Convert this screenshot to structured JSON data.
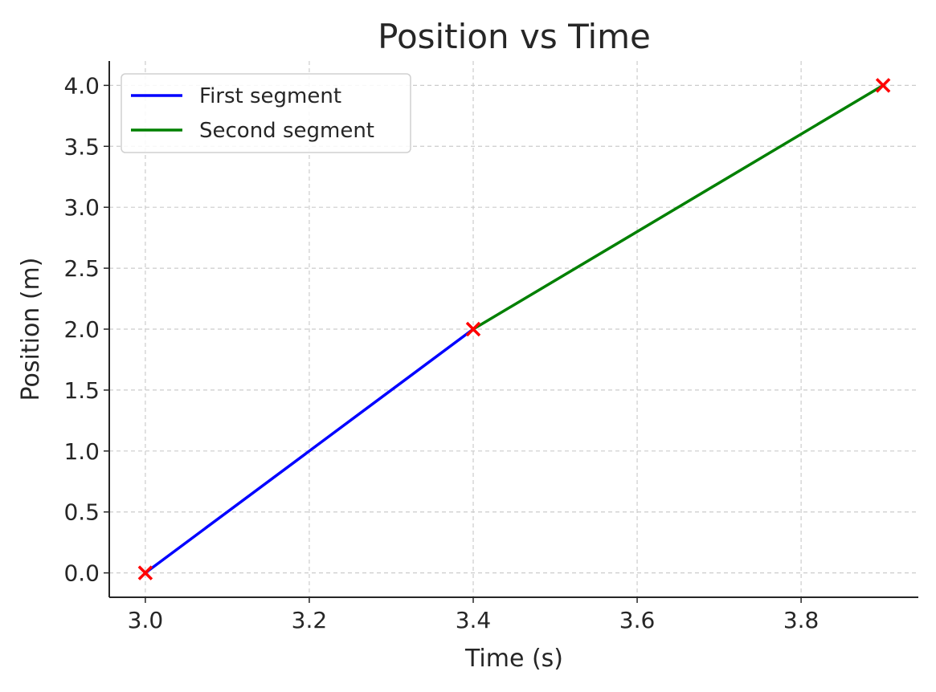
{
  "chart_data": {
    "type": "line",
    "title": "Position vs Time",
    "xlabel": "Time (s)",
    "ylabel": "Position (m)",
    "xlim": [
      2.956,
      3.943
    ],
    "ylim": [
      -0.2,
      4.2
    ],
    "xticks": [
      "3.0",
      "3.2",
      "3.4",
      "3.6",
      "3.8"
    ],
    "xtick_values": [
      3.0,
      3.2,
      3.4,
      3.6,
      3.8
    ],
    "yticks": [
      "0.0",
      "0.5",
      "1.0",
      "1.5",
      "2.0",
      "2.5",
      "3.0",
      "3.5",
      "4.0"
    ],
    "ytick_values": [
      0,
      0.5,
      1,
      1.5,
      2,
      2.5,
      3,
      3.5,
      4
    ],
    "grid": true,
    "legend_position": "top-left",
    "series": [
      {
        "name": "First segment",
        "color": "#0000ff",
        "x": [
          3.0,
          3.4
        ],
        "y": [
          0.0,
          2.0
        ]
      },
      {
        "name": "Second segment",
        "color": "#008000",
        "x": [
          3.4,
          3.9
        ],
        "y": [
          2.0,
          4.0
        ]
      }
    ],
    "markers": {
      "color": "#ff0000",
      "symbol": "x",
      "x": [
        3.0,
        3.4,
        3.9
      ],
      "y": [
        0.0,
        2.0,
        4.0
      ]
    }
  }
}
